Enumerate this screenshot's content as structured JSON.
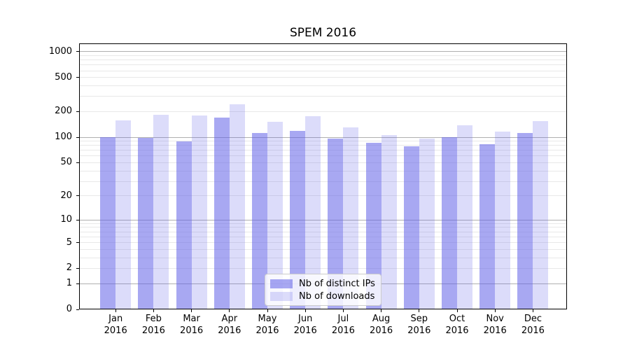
{
  "chart_data": {
    "type": "bar",
    "title": "SPEM 2016",
    "x": {
      "categories": [
        "Jan",
        "Feb",
        "Mar",
        "Apr",
        "May",
        "Jun",
        "Jul",
        "Aug",
        "Sep",
        "Oct",
        "Nov",
        "Dec"
      ],
      "year_label": "2016"
    },
    "y": {
      "scale": "log1p",
      "label_ticks": [
        0,
        1,
        2,
        5,
        10,
        20,
        50,
        100,
        200,
        500,
        1000
      ],
      "major_grid": [
        1,
        10,
        100,
        1000
      ],
      "minor_grid": [
        2,
        3,
        4,
        5,
        6,
        7,
        8,
        9,
        20,
        30,
        40,
        50,
        60,
        70,
        80,
        90,
        200,
        300,
        400,
        500,
        600,
        700,
        800,
        900
      ],
      "ylim": [
        0,
        1250
      ],
      "grid": true
    },
    "series": [
      {
        "name": "Nb of distinct IPs",
        "color": "rgba(96,96,232,0.55)",
        "values": [
          100,
          98,
          89,
          171,
          112,
          118,
          96,
          86,
          78,
          100,
          83,
          112
        ]
      },
      {
        "name": "Nb of downloads",
        "color": "rgba(96,96,232,0.22)",
        "values": [
          158,
          183,
          180,
          244,
          151,
          177,
          131,
          107,
          97,
          138,
          117,
          154
        ]
      }
    ],
    "legend": {
      "position": "bottom-center"
    }
  },
  "colors": {
    "grid_major": "#b0b0b0",
    "grid_minor": "#e8e8e8",
    "spine": "#000000",
    "legend_border": "#cccccc"
  }
}
